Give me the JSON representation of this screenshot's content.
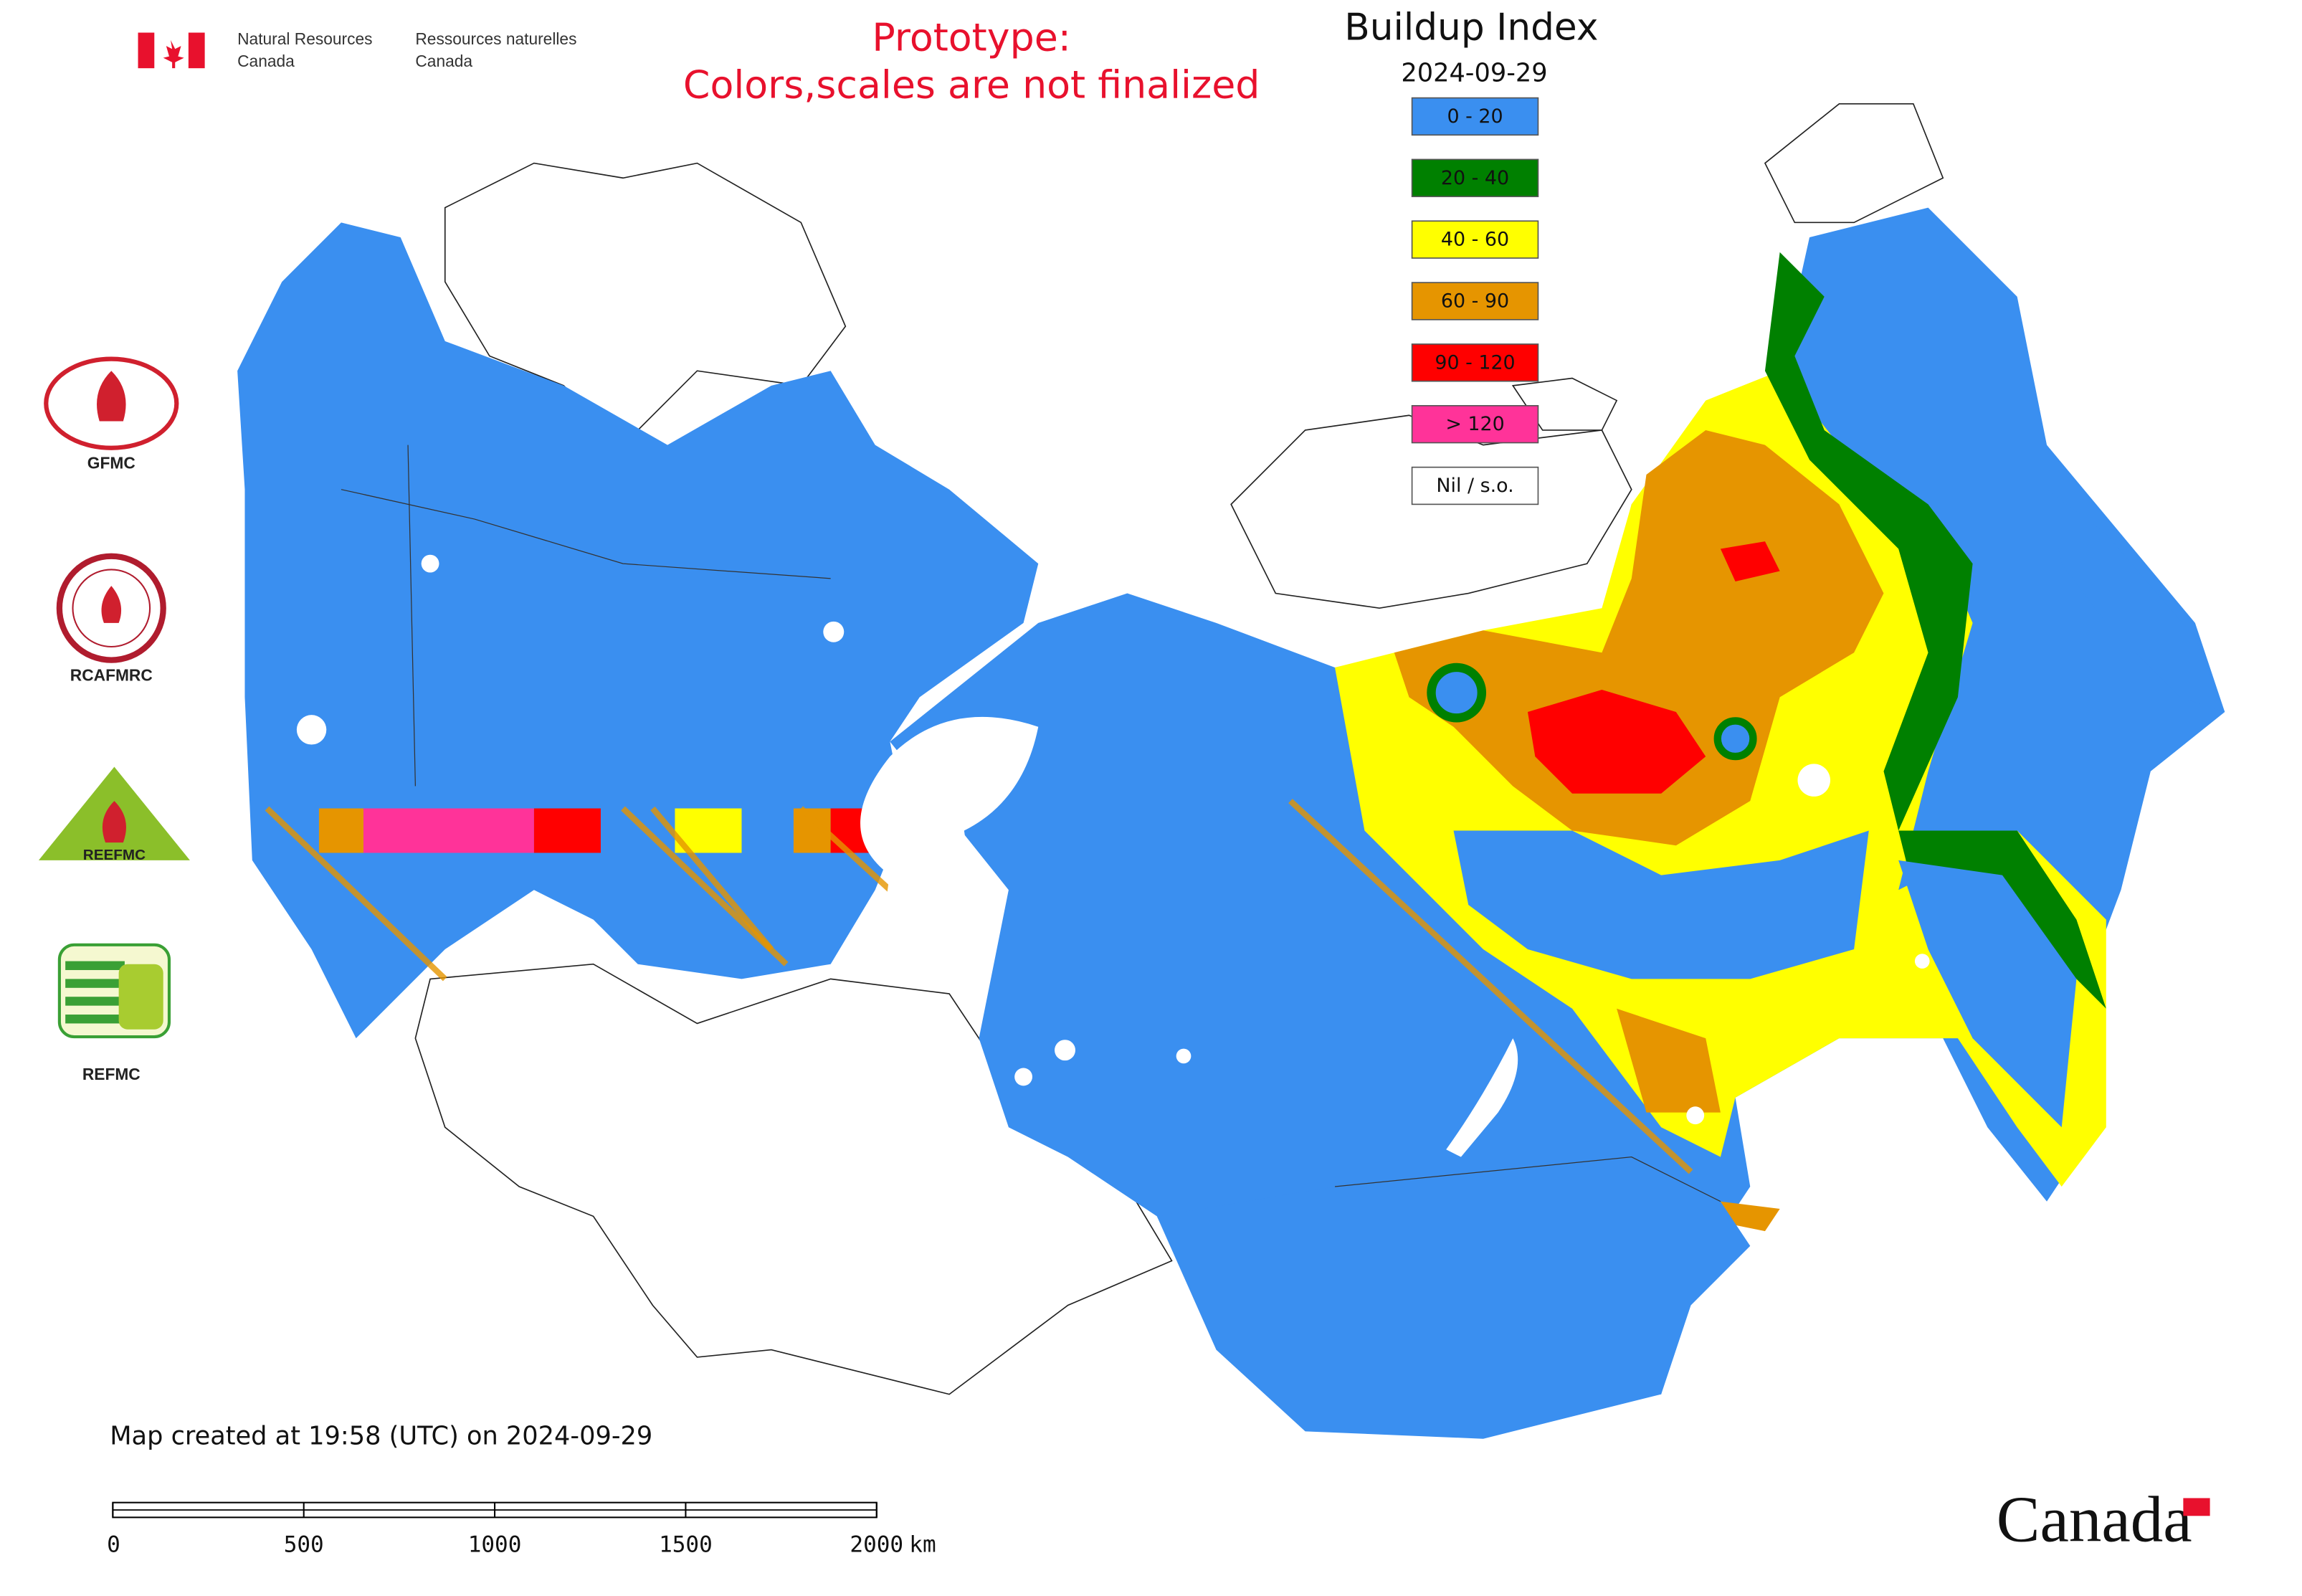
{
  "header": {
    "agency_en_1": "Natural Resources",
    "agency_en_2": "Canada",
    "agency_fr_1": "Ressources naturelles",
    "agency_fr_2": "Canada"
  },
  "notice": {
    "line1": "Prototype:",
    "line2": "Colors,scales are not finalized"
  },
  "legend": {
    "title": "Buildup Index",
    "date": "2024-09-29",
    "items": [
      {
        "label": "0 - 20",
        "color": "#3a8ff0"
      },
      {
        "label": "20 - 40",
        "color": "#008000"
      },
      {
        "label": "40 - 60",
        "color": "#ffff00"
      },
      {
        "label": "60 - 90",
        "color": "#e69500"
      },
      {
        "label": "90 - 120",
        "color": "#ff0000"
      },
      {
        "label": "> 120",
        "color": "#ff3399"
      },
      {
        "label": "Nil / s.o.",
        "color": "#ffffff"
      }
    ]
  },
  "logos": [
    "GFMC",
    "RCAFMRC",
    "REEFMC",
    "REFMC"
  ],
  "footer": {
    "created": "Map created at 19:58 (UTC) on 2024-09-29",
    "wordmark": "Canada"
  },
  "scale_bar": {
    "range": [
      0,
      2000
    ],
    "ticks": [
      0,
      500,
      1000,
      1500,
      2000
    ],
    "unit": "km"
  }
}
